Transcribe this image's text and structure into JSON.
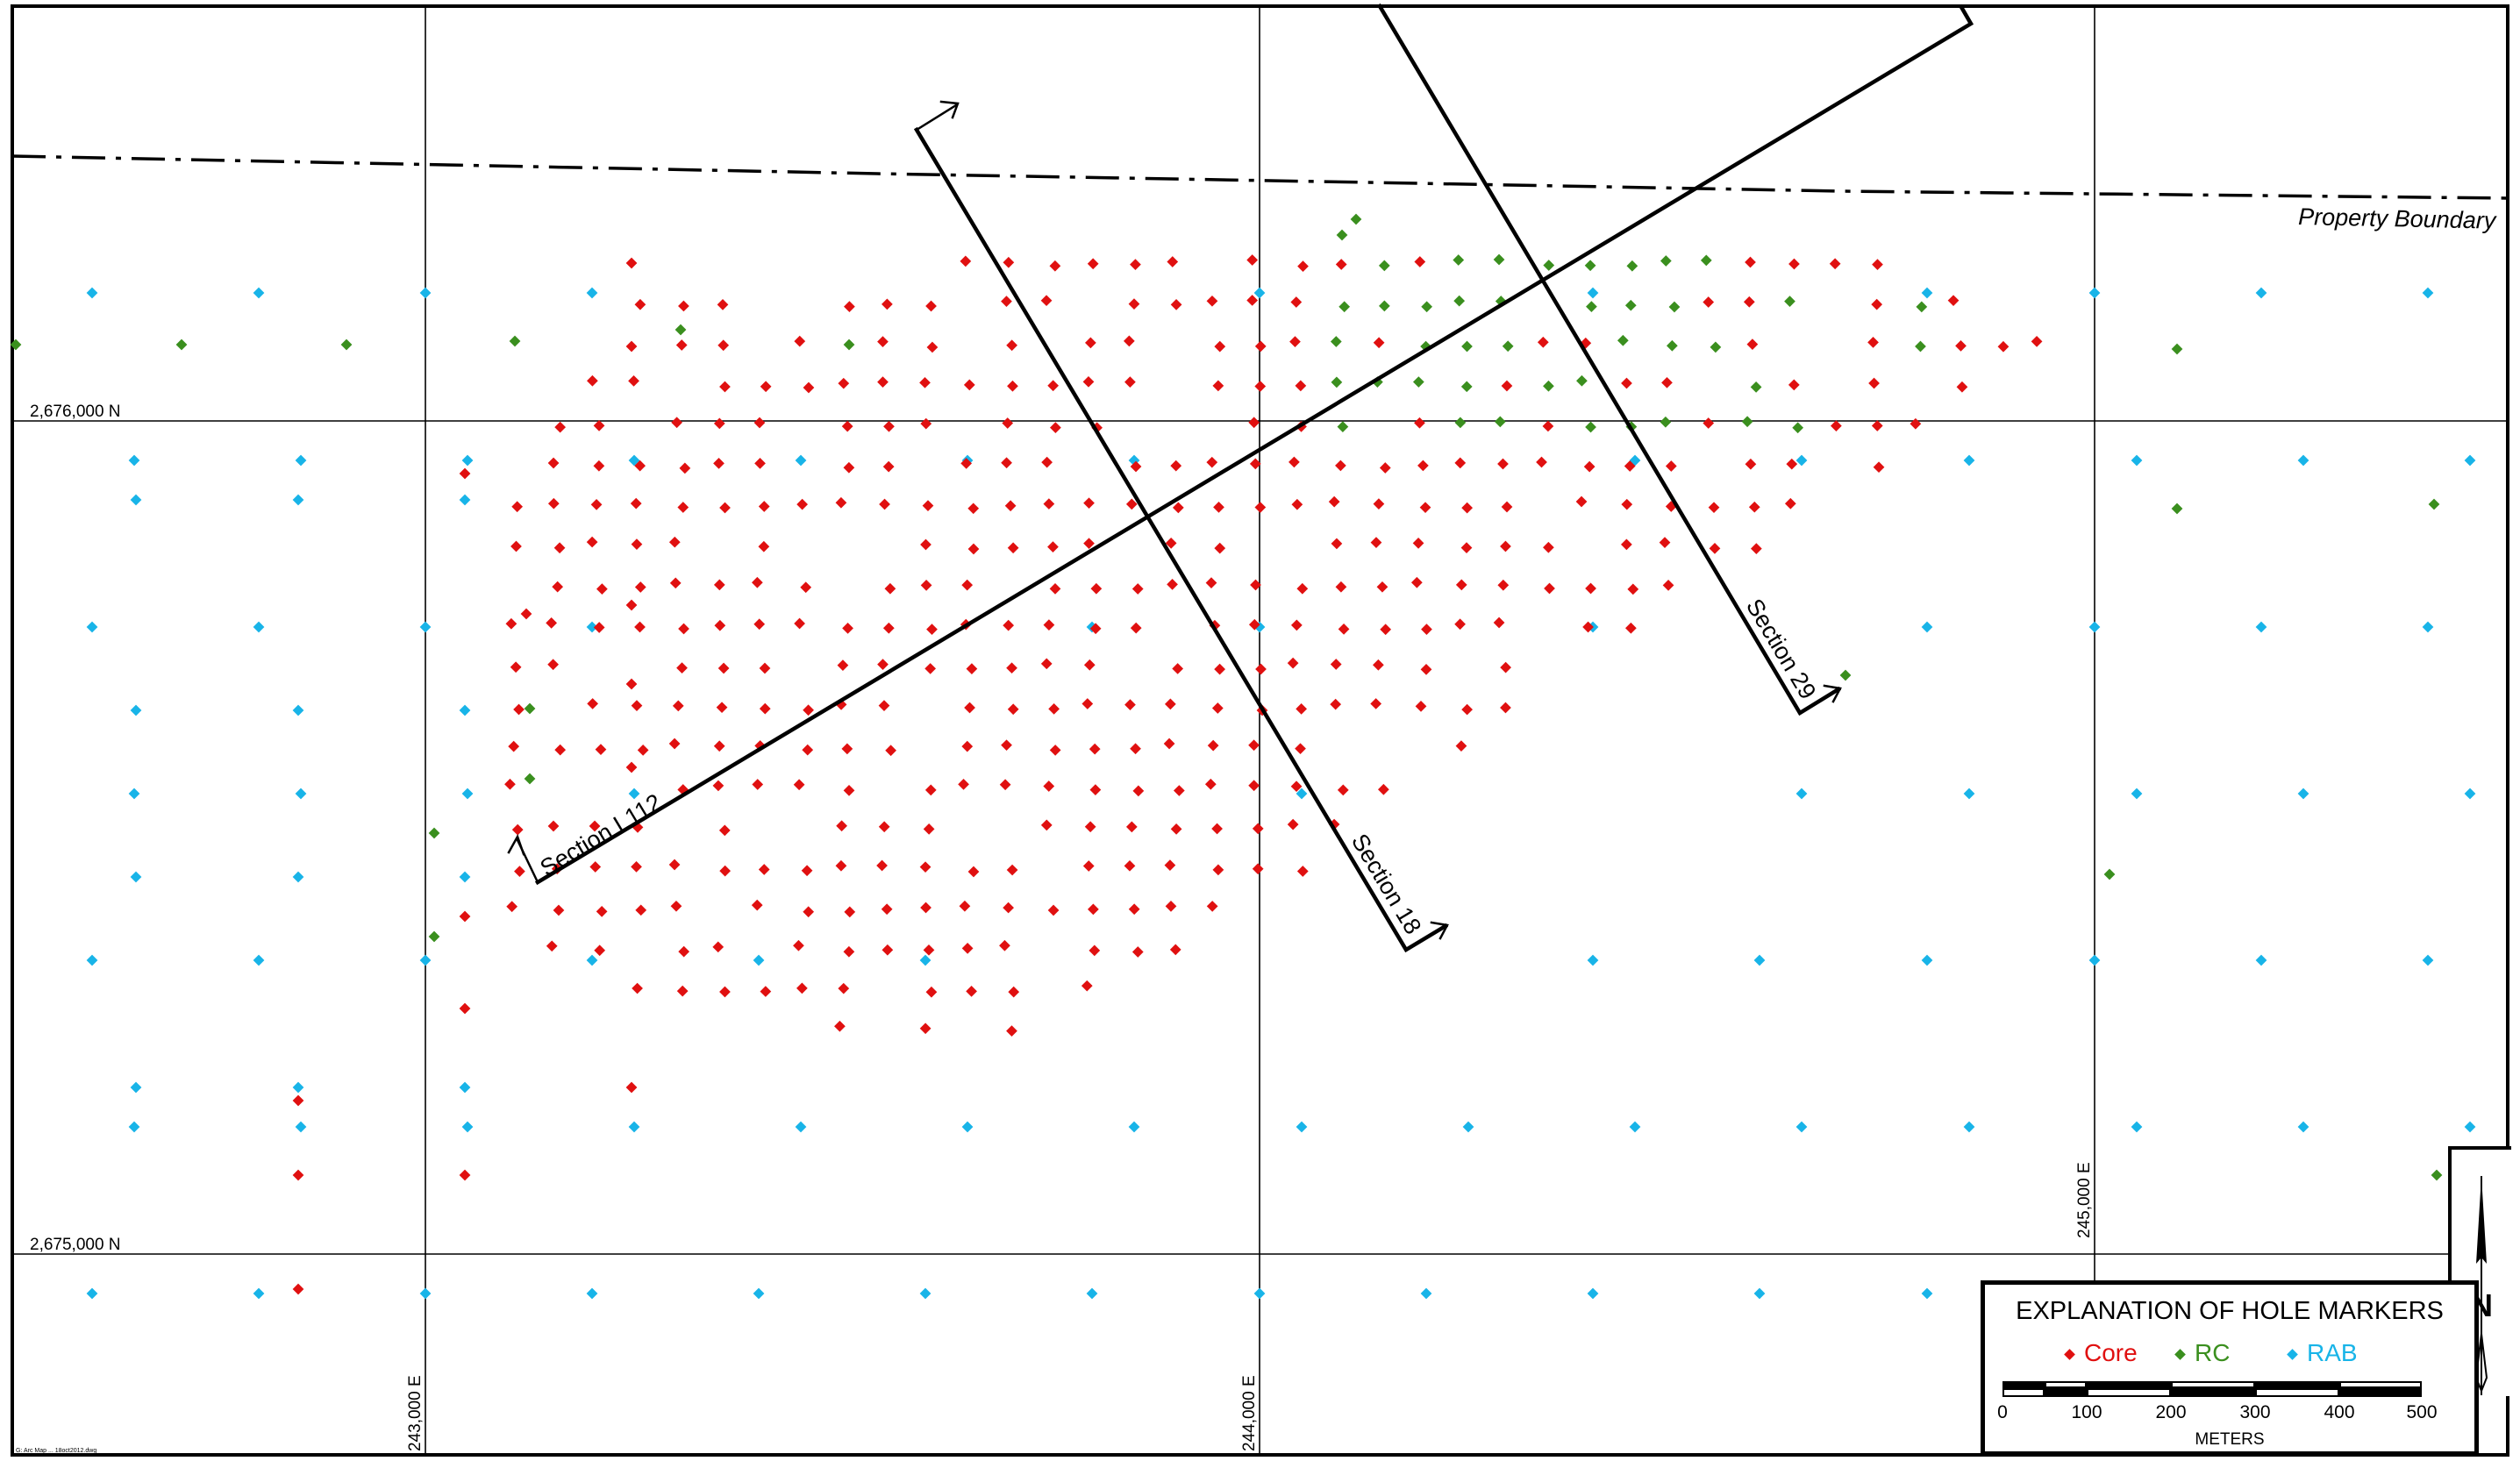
{
  "map": {
    "property_boundary_label": "Property Boundary",
    "northing_labels": [
      "2,676,000  N",
      "2,675,000  N"
    ],
    "easting_labels": [
      "243,000  E",
      "244,000  E",
      "245,000  E"
    ],
    "section_labels": [
      "Section L112",
      "Section 18",
      "Section 29"
    ],
    "north_label": "N",
    "footer_note": "G: Arc Map ... 18oct2012.dwg"
  },
  "legend": {
    "title": "EXPLANATION OF HOLE MARKERS",
    "items": [
      {
        "label": "Core",
        "color": "#e01010"
      },
      {
        "label": "RC",
        "color": "#3a8f1e"
      },
      {
        "label": "RAB",
        "color": "#18b4e8"
      }
    ],
    "scale_ticks": [
      "0",
      "100",
      "200",
      "300",
      "400",
      "500"
    ],
    "scale_unit": "METERS"
  }
}
